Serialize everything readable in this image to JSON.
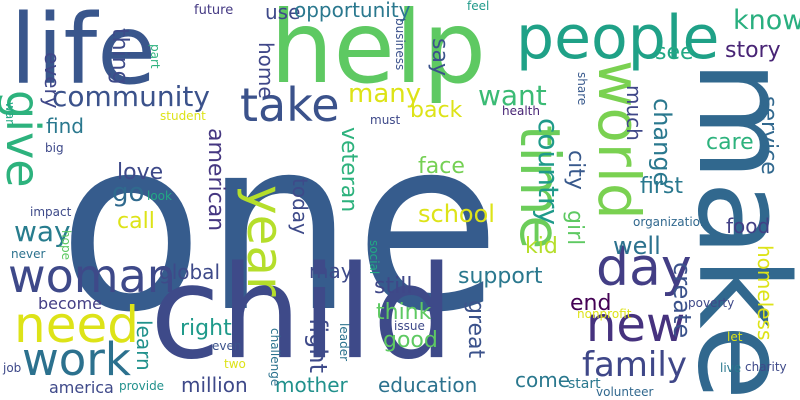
{
  "words": [
    {
      "text": "one",
      "color": "#365c8d"
    },
    {
      "text": "child",
      "color": "#3e4a89"
    },
    {
      "text": "make",
      "color": "#31688e"
    },
    {
      "text": "help",
      "color": "#5ec962"
    },
    {
      "text": "life",
      "color": "#39568c"
    },
    {
      "text": "people",
      "color": "#1fa187"
    },
    {
      "text": "woman",
      "color": "#3e4989"
    },
    {
      "text": "need",
      "color": "#dde318"
    },
    {
      "text": "day",
      "color": "#433e85"
    },
    {
      "text": "new",
      "color": "#46327e"
    },
    {
      "text": "world",
      "color": "#7ad151"
    },
    {
      "text": "time",
      "color": "#6ccd5a"
    },
    {
      "text": "year",
      "color": "#b5de2b"
    },
    {
      "text": "take",
      "color": "#3b528b"
    },
    {
      "text": "work",
      "color": "#2c718e"
    },
    {
      "text": "give",
      "color": "#2db27d"
    },
    {
      "text": "community",
      "color": "#3b528b"
    },
    {
      "text": "family",
      "color": "#3f4788"
    },
    {
      "text": "country",
      "color": "#1f9a8a"
    },
    {
      "text": "many",
      "color": "#dde318"
    },
    {
      "text": "want",
      "color": "#3bbb75"
    },
    {
      "text": "know",
      "color": "#29af7f"
    },
    {
      "text": "story",
      "color": "#482475"
    },
    {
      "text": "see",
      "color": "#22a884"
    },
    {
      "text": "every",
      "color": "#3f4788"
    },
    {
      "text": "thing",
      "color": "#3e4a89"
    },
    {
      "text": "use",
      "color": "#3e4989"
    },
    {
      "text": "home",
      "color": "#3f4788"
    },
    {
      "text": "say",
      "color": "#3b528b"
    },
    {
      "text": "back",
      "color": "#dde318"
    },
    {
      "text": "find",
      "color": "#2a788e"
    },
    {
      "text": "much",
      "color": "#3f4788"
    },
    {
      "text": "change",
      "color": "#2a788e"
    },
    {
      "text": "service",
      "color": "#31688e"
    },
    {
      "text": "care",
      "color": "#2db27d"
    },
    {
      "text": "city",
      "color": "#38598c"
    },
    {
      "text": "first",
      "color": "#2a788e"
    },
    {
      "text": "american",
      "color": "#453781"
    },
    {
      "text": "love",
      "color": "#3e4989"
    },
    {
      "text": "go",
      "color": "#306a8e"
    },
    {
      "text": "call",
      "color": "#dde318"
    },
    {
      "text": "way",
      "color": "#287d8e"
    },
    {
      "text": "veteran",
      "color": "#2db27d"
    },
    {
      "text": "face",
      "color": "#75d054"
    },
    {
      "text": "school",
      "color": "#dde318"
    },
    {
      "text": "today",
      "color": "#3e4a89"
    },
    {
      "text": "girl",
      "color": "#5ec962"
    },
    {
      "text": "kid",
      "color": "#b5de2b"
    },
    {
      "text": "well",
      "color": "#2c728e"
    },
    {
      "text": "food",
      "color": "#424086"
    },
    {
      "text": "create",
      "color": "#3b528b"
    },
    {
      "text": "homeless",
      "color": "#dde318"
    },
    {
      "text": "global",
      "color": "#3e4a89"
    },
    {
      "text": "may",
      "color": "#3e4a89"
    },
    {
      "text": "still",
      "color": "#3f4788"
    },
    {
      "text": "support",
      "color": "#2a788e"
    },
    {
      "text": "think",
      "color": "#5ec962"
    },
    {
      "text": "good",
      "color": "#5ec962"
    },
    {
      "text": "right",
      "color": "#1f9a8a"
    },
    {
      "text": "fight",
      "color": "#3e4a89"
    },
    {
      "text": "great",
      "color": "#3b528b"
    },
    {
      "text": "end",
      "color": "#440154"
    },
    {
      "text": "learn",
      "color": "#21918c"
    },
    {
      "text": "become",
      "color": "#433e85"
    },
    {
      "text": "million",
      "color": "#3e4989"
    },
    {
      "text": "mother",
      "color": "#21918c"
    },
    {
      "text": "education",
      "color": "#2c728e"
    },
    {
      "text": "come",
      "color": "#2a788e"
    },
    {
      "text": "america",
      "color": "#3e4989"
    },
    {
      "text": "provide",
      "color": "#21918c"
    },
    {
      "text": "start",
      "color": "#2a788e"
    },
    {
      "text": "volunteer",
      "color": "#31688e"
    },
    {
      "text": "opportunity",
      "color": "#2a788e"
    },
    {
      "text": "future",
      "color": "#443983"
    },
    {
      "text": "feel",
      "color": "#1f9a8a"
    },
    {
      "text": "part",
      "color": "#2db27d"
    },
    {
      "text": "business",
      "color": "#3b528b"
    },
    {
      "text": "share",
      "color": "#38598c"
    },
    {
      "text": "health",
      "color": "#482475"
    },
    {
      "text": "must",
      "color": "#3e4989"
    },
    {
      "text": "student",
      "color": "#dde318"
    },
    {
      "text": "war",
      "color": "#22a884"
    },
    {
      "text": "big",
      "color": "#3e4989"
    },
    {
      "text": "look",
      "color": "#22a884"
    },
    {
      "text": "impact",
      "color": "#3e4a89"
    },
    {
      "text": "hope",
      "color": "#5ec962"
    },
    {
      "text": "never",
      "color": "#2c728e"
    },
    {
      "text": "social",
      "color": "#22a884"
    },
    {
      "text": "organization",
      "color": "#31688e"
    },
    {
      "text": "nonprofit",
      "color": "#dde318"
    },
    {
      "text": "poverty",
      "color": "#3e4989"
    },
    {
      "text": "let",
      "color": "#dde318"
    },
    {
      "text": "live",
      "color": "#2a788e"
    },
    {
      "text": "charity",
      "color": "#3e4989"
    },
    {
      "text": "leader",
      "color": "#2c728e"
    },
    {
      "text": "issue",
      "color": "#3e4989"
    },
    {
      "text": "even",
      "color": "#3b528b"
    },
    {
      "text": "challenge",
      "color": "#2c728e"
    },
    {
      "text": "two",
      "color": "#dde318"
    },
    {
      "text": "job",
      "color": "#3e4989"
    }
  ]
}
